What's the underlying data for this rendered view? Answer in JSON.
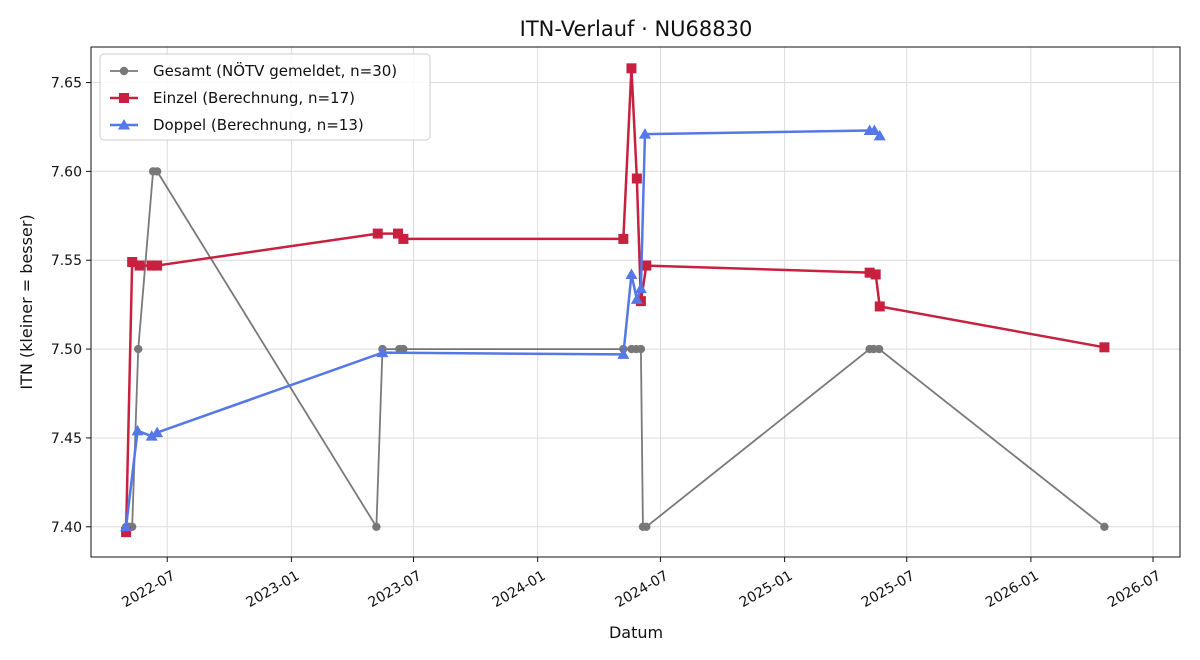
{
  "chart_data": {
    "type": "line",
    "title": "ITN-Verlauf · NU68830",
    "xlabel": "Datum",
    "ylabel": "ITN  (kleiner = besser)",
    "xlim": [
      "2022-03-10",
      "2026-08-10"
    ],
    "ylim": [
      7.383,
      7.67
    ],
    "x_ticks": [
      "2022-07-01",
      "2023-01-01",
      "2023-07-01",
      "2024-01-01",
      "2024-07-01",
      "2025-01-01",
      "2025-07-01",
      "2026-01-01",
      "2026-07-01"
    ],
    "x_tick_labels": [
      "2022-07",
      "2023-01",
      "2023-07",
      "2024-01",
      "2024-07",
      "2025-01",
      "2025-07",
      "2026-01",
      "2026-07"
    ],
    "y_ticks": [
      7.4,
      7.45,
      7.5,
      7.55,
      7.6,
      7.65
    ],
    "y_tick_labels": [
      "7.40",
      "7.45",
      "7.50",
      "7.55",
      "7.60",
      "7.65"
    ],
    "grid": true,
    "legend_position": "top-left",
    "series": [
      {
        "name": "Gesamt (NÖTV gemeldet, n=30)",
        "color": "#4d4d4d",
        "marker": "circle",
        "points": [
          [
            "2022-05-01",
            7.4
          ],
          [
            "2022-05-05",
            7.4
          ],
          [
            "2022-05-10",
            7.4
          ],
          [
            "2022-05-19",
            7.5
          ],
          [
            "2022-06-10",
            7.6
          ],
          [
            "2022-06-16",
            7.6
          ],
          [
            "2023-05-07",
            7.4
          ],
          [
            "2023-05-16",
            7.5
          ],
          [
            "2023-06-10",
            7.5
          ],
          [
            "2023-06-16",
            7.5
          ],
          [
            "2024-05-07",
            7.5
          ],
          [
            "2024-05-19",
            7.5
          ],
          [
            "2024-05-26",
            7.5
          ],
          [
            "2024-06-02",
            7.5
          ],
          [
            "2024-06-05",
            7.4
          ],
          [
            "2024-06-10",
            7.4
          ],
          [
            "2025-05-07",
            7.5
          ],
          [
            "2025-05-13",
            7.5
          ],
          [
            "2025-05-21",
            7.5
          ],
          [
            "2026-04-20",
            7.4
          ]
        ]
      },
      {
        "name": "Einzel (Berechnung, n=17)",
        "color": "#c8203f",
        "marker": "square",
        "points": [
          [
            "2022-05-01",
            7.397
          ],
          [
            "2022-05-10",
            7.549
          ],
          [
            "2022-05-21",
            7.547
          ],
          [
            "2022-06-08",
            7.547
          ],
          [
            "2022-06-16",
            7.547
          ],
          [
            "2023-05-09",
            7.565
          ],
          [
            "2023-06-08",
            7.565
          ],
          [
            "2023-06-16",
            7.562
          ],
          [
            "2024-05-07",
            7.562
          ],
          [
            "2024-05-19",
            7.658
          ],
          [
            "2024-05-27",
            7.596
          ],
          [
            "2024-06-02",
            7.527
          ],
          [
            "2024-06-10",
            7.547
          ],
          [
            "2025-05-07",
            7.543
          ],
          [
            "2025-05-16",
            7.542
          ],
          [
            "2025-05-22",
            7.524
          ],
          [
            "2026-04-20",
            7.501
          ]
        ]
      },
      {
        "name": "Doppel (Berechnung, n=13)",
        "color": "#5577e8",
        "marker": "triangle",
        "points": [
          [
            "2022-05-01",
            7.4
          ],
          [
            "2022-05-18",
            7.454
          ],
          [
            "2022-06-08",
            7.451
          ],
          [
            "2022-06-16",
            7.453
          ],
          [
            "2023-05-16",
            7.498
          ],
          [
            "2024-05-07",
            7.497
          ],
          [
            "2024-05-19",
            7.542
          ],
          [
            "2024-05-27",
            7.528
          ],
          [
            "2024-06-02",
            7.534
          ],
          [
            "2024-06-08",
            7.621
          ],
          [
            "2025-05-07",
            7.623
          ],
          [
            "2025-05-14",
            7.623
          ],
          [
            "2025-05-22",
            7.62
          ]
        ]
      }
    ]
  }
}
